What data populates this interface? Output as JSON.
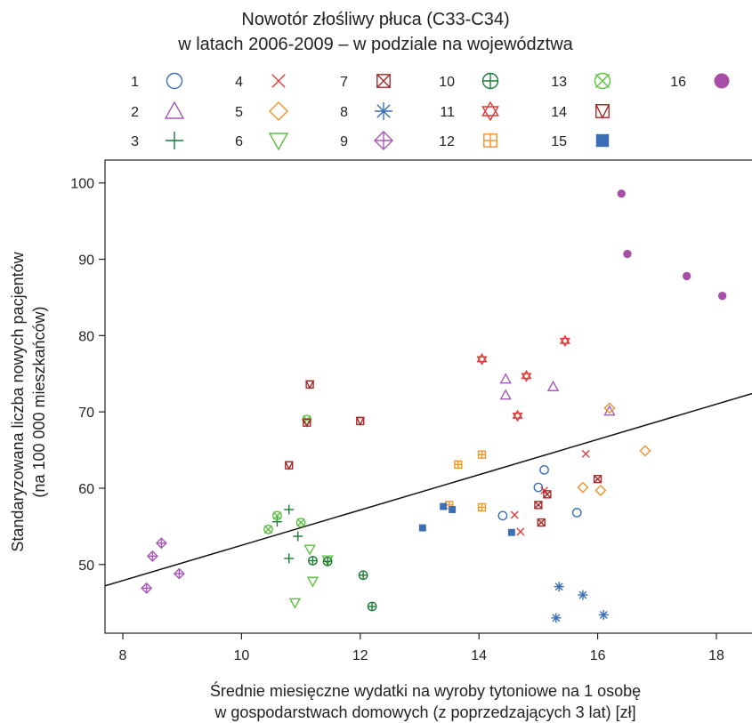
{
  "chart_data": {
    "type": "scatter",
    "title_lines": [
      "Nowotór złośliwy płuca (C33-C34)",
      "w latach 2006-2009 – w podziale na województwa"
    ],
    "xlabel_lines": [
      "Średnie miesięczne wydatki na wyroby tytoniowe na 1 osobę",
      "w gospodarstwach domowych (z poprzedzających 3 lat) [zł]"
    ],
    "ylabel_lines": [
      "Standaryzowana liczba nowych pacjentów",
      "(na 100 000 mieszkańców)"
    ],
    "xlim": [
      7.7,
      18.6
    ],
    "ylim": [
      41,
      103
    ],
    "xticks": [
      8,
      10,
      12,
      14,
      16,
      18
    ],
    "yticks": [
      50,
      60,
      70,
      80,
      90,
      100
    ],
    "grid": false,
    "legend_position": "top",
    "trendline": {
      "x": [
        7.7,
        18.6
      ],
      "y": [
        47.2,
        72.4
      ]
    },
    "series": [
      {
        "name": "1",
        "marker": "circle",
        "color": "#3a6fb5",
        "points": [
          [
            14.4,
            56.4
          ],
          [
            15.0,
            60.1
          ],
          [
            15.1,
            62.4
          ],
          [
            15.65,
            56.8
          ]
        ]
      },
      {
        "name": "2",
        "marker": "triangle-up",
        "color": "#a858b8",
        "points": [
          [
            14.45,
            72.2
          ],
          [
            14.45,
            74.3
          ],
          [
            15.25,
            73.3
          ],
          [
            16.2,
            70.1
          ]
        ]
      },
      {
        "name": "3",
        "marker": "plus",
        "color": "#1e7a3a",
        "points": [
          [
            10.6,
            55.6
          ],
          [
            10.8,
            57.2
          ],
          [
            10.8,
            50.8
          ],
          [
            10.95,
            53.7
          ]
        ]
      },
      {
        "name": "4",
        "marker": "x",
        "color": "#e03a3a",
        "points": [
          [
            14.6,
            56.5
          ],
          [
            14.7,
            54.3
          ],
          [
            15.1,
            59.7
          ],
          [
            15.8,
            64.5
          ]
        ]
      },
      {
        "name": "5",
        "marker": "diamond",
        "color": "#f0922d",
        "points": [
          [
            15.75,
            60.1
          ],
          [
            16.05,
            59.7
          ],
          [
            16.2,
            70.5
          ],
          [
            16.8,
            64.9
          ]
        ]
      },
      {
        "name": "6",
        "marker": "triangle-down",
        "color": "#5cc040",
        "points": [
          [
            10.9,
            45.0
          ],
          [
            11.15,
            52.0
          ],
          [
            11.2,
            47.8
          ],
          [
            11.45,
            50.6
          ]
        ]
      },
      {
        "name": "7",
        "marker": "square-x",
        "color": "#a82828",
        "points": [
          [
            15.0,
            57.8
          ],
          [
            15.05,
            55.5
          ],
          [
            15.15,
            59.2
          ],
          [
            16.0,
            61.2
          ]
        ]
      },
      {
        "name": "8",
        "marker": "asterisk",
        "color": "#3a6fb5",
        "points": [
          [
            15.3,
            43.0
          ],
          [
            15.35,
            47.1
          ],
          [
            15.75,
            46.0
          ],
          [
            16.1,
            43.4
          ]
        ]
      },
      {
        "name": "9",
        "marker": "diamond-plus",
        "color": "#a858b8",
        "points": [
          [
            8.4,
            46.9
          ],
          [
            8.5,
            51.1
          ],
          [
            8.65,
            52.8
          ],
          [
            8.95,
            48.8
          ]
        ]
      },
      {
        "name": "10",
        "marker": "circle-plus",
        "color": "#1e7a3a",
        "points": [
          [
            11.2,
            50.5
          ],
          [
            11.45,
            50.4
          ],
          [
            12.05,
            48.6
          ],
          [
            12.2,
            44.5
          ]
        ]
      },
      {
        "name": "11",
        "marker": "star-of-david",
        "color": "#e03a3a",
        "points": [
          [
            14.05,
            76.9
          ],
          [
            14.65,
            69.5
          ],
          [
            14.8,
            74.7
          ],
          [
            15.45,
            79.3
          ]
        ]
      },
      {
        "name": "12",
        "marker": "square-plus",
        "color": "#f0922d",
        "points": [
          [
            13.5,
            57.8
          ],
          [
            13.65,
            63.1
          ],
          [
            14.05,
            64.4
          ],
          [
            14.05,
            57.5
          ]
        ]
      },
      {
        "name": "13",
        "marker": "circle-x",
        "color": "#5cc040",
        "points": [
          [
            10.45,
            54.6
          ],
          [
            10.6,
            56.4
          ],
          [
            11.0,
            55.5
          ],
          [
            11.1,
            69.0
          ]
        ]
      },
      {
        "name": "14",
        "marker": "square-triangle",
        "color": "#a82828",
        "points": [
          [
            10.8,
            63.0
          ],
          [
            11.1,
            68.6
          ],
          [
            11.15,
            73.6
          ],
          [
            12.0,
            68.8
          ]
        ]
      },
      {
        "name": "15",
        "marker": "square-filled",
        "color": "#3a6fb5",
        "points": [
          [
            13.05,
            54.8
          ],
          [
            13.4,
            57.6
          ],
          [
            13.55,
            57.2
          ],
          [
            14.55,
            54.2
          ]
        ]
      },
      {
        "name": "16",
        "marker": "circle-filled",
        "color": "#a64ea8",
        "points": [
          [
            16.4,
            98.6
          ],
          [
            16.5,
            90.7
          ],
          [
            17.5,
            87.8
          ],
          [
            18.1,
            85.2
          ]
        ]
      }
    ]
  }
}
